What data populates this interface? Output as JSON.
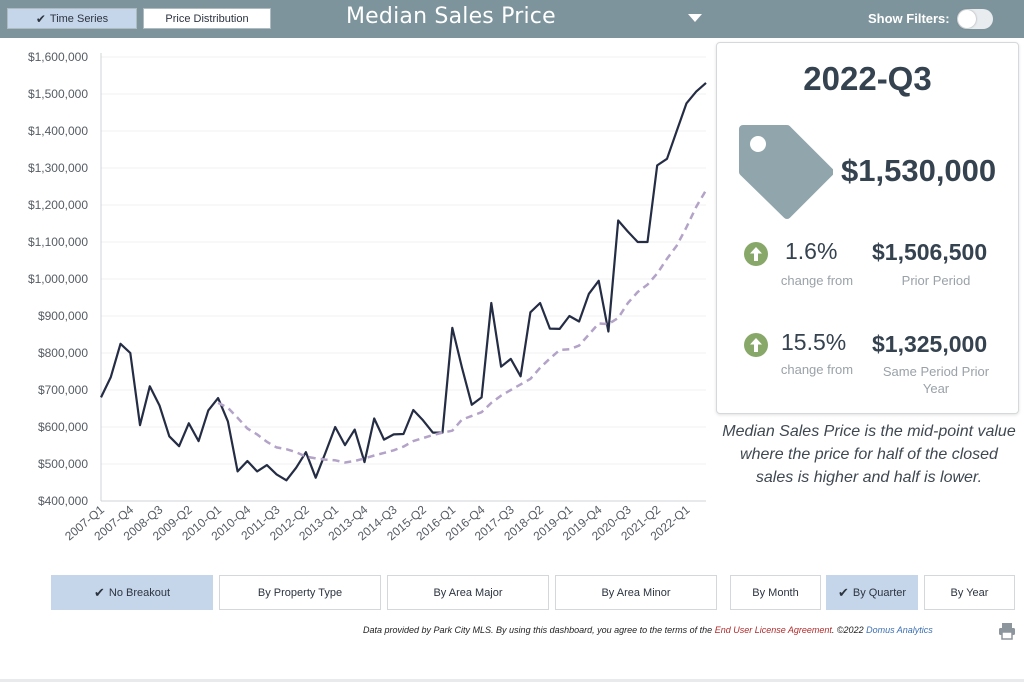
{
  "header": {
    "tabs": [
      {
        "label": "Time Series",
        "active": true
      },
      {
        "label": "Price Distribution",
        "active": false
      }
    ],
    "title": "Median Sales Price",
    "show_filters_label": "Show Filters:",
    "show_filters_on": false
  },
  "chart_data": {
    "type": "line",
    "ylim": [
      400000,
      1600000
    ],
    "y_ticks": [
      "$1,600,000",
      "$1,500,000",
      "$1,400,000",
      "$1,300,000",
      "$1,200,000",
      "$1,100,000",
      "$1,000,000",
      "$900,000",
      "$800,000",
      "$700,000",
      "$600,000",
      "$500,000",
      "$400,000"
    ],
    "x_tick_labels": [
      "2007-Q1",
      "2007-Q4",
      "2008-Q3",
      "2009-Q2",
      "2010-Q1",
      "2010-Q4",
      "2011-Q3",
      "2012-Q2",
      "2013-Q1",
      "2013-Q4",
      "2014-Q3",
      "2015-Q2",
      "2016-Q1",
      "2016-Q4",
      "2017-Q3",
      "2018-Q2",
      "2019-Q1",
      "2019-Q4",
      "2020-Q3",
      "2021-Q2",
      "2022-Q1"
    ],
    "categories": [
      "2007-Q1",
      "2007-Q2",
      "2007-Q3",
      "2007-Q4",
      "2008-Q1",
      "2008-Q2",
      "2008-Q3",
      "2008-Q4",
      "2009-Q1",
      "2009-Q2",
      "2009-Q3",
      "2009-Q4",
      "2010-Q1",
      "2010-Q2",
      "2010-Q3",
      "2010-Q4",
      "2011-Q1",
      "2011-Q2",
      "2011-Q3",
      "2011-Q4",
      "2012-Q1",
      "2012-Q2",
      "2012-Q3",
      "2012-Q4",
      "2013-Q1",
      "2013-Q2",
      "2013-Q3",
      "2013-Q4",
      "2014-Q1",
      "2014-Q2",
      "2014-Q3",
      "2014-Q4",
      "2015-Q1",
      "2015-Q2",
      "2015-Q3",
      "2015-Q4",
      "2016-Q1",
      "2016-Q2",
      "2016-Q3",
      "2016-Q4",
      "2017-Q1",
      "2017-Q2",
      "2017-Q3",
      "2017-Q4",
      "2018-Q1",
      "2018-Q2",
      "2018-Q3",
      "2018-Q4",
      "2019-Q1",
      "2019-Q2",
      "2019-Q3",
      "2019-Q4",
      "2020-Q1",
      "2020-Q2",
      "2020-Q3",
      "2020-Q4",
      "2021-Q1",
      "2021-Q2",
      "2021-Q3",
      "2021-Q4",
      "2022-Q1",
      "2022-Q2",
      "2022-Q3"
    ],
    "series": [
      {
        "values": [
          680000,
          735000,
          825000,
          800000,
          605000,
          710000,
          658000,
          575000,
          548000,
          610000,
          562000,
          645000,
          678000,
          615000,
          480000,
          508000,
          480000,
          497000,
          472000,
          456000,
          490000,
          532000,
          463000,
          530000,
          600000,
          551000,
          593000,
          505000,
          623000,
          566000,
          580000,
          581000,
          646000,
          618000,
          585000,
          585000,
          868000,
          760000,
          660000,
          680000,
          935000,
          763000,
          784000,
          737000,
          910000,
          935000,
          866000,
          865000,
          900000,
          885000,
          960000,
          995000,
          858000,
          1158000,
          1128000,
          1100000,
          1100000,
          1307000,
          1325000,
          1400000,
          1475000,
          1506500,
          1530000
        ],
        "color": "#252d45",
        "style": "solid"
      },
      {
        "values": [
          null,
          null,
          null,
          null,
          null,
          null,
          null,
          null,
          null,
          null,
          null,
          null,
          665000,
          652000,
          625000,
          596000,
          580000,
          560000,
          545000,
          540000,
          532000,
          520000,
          515000,
          512000,
          510000,
          504000,
          508000,
          515000,
          523000,
          530000,
          537000,
          547000,
          562000,
          570000,
          578000,
          585000,
          590000,
          620000,
          630000,
          640000,
          665000,
          685000,
          700000,
          715000,
          730000,
          760000,
          785000,
          808000,
          810000,
          820000,
          850000,
          880000,
          878000,
          895000,
          935000,
          965000,
          985000,
          1015000,
          1055000,
          1090000,
          1140000,
          1195000,
          1240000
        ],
        "color": "#b3a3c8",
        "style": "dashed"
      }
    ]
  },
  "kpi": {
    "period": "2022-Q3",
    "value": "$1,530,000",
    "tag_icon": "price-tag-icon",
    "rows": [
      {
        "pct": "1.6%",
        "pct_label": "change from",
        "value": "$1,506,500",
        "value_label": "Prior Period",
        "direction_icon": "arrow-up-icon"
      },
      {
        "pct": "15.5%",
        "pct_label": "change from",
        "value": "$1,325,000",
        "value_label": "Same Period Prior Year",
        "direction_icon": "arrow-up-icon"
      }
    ]
  },
  "description": "Median Sales Price is the mid-point value where the price for half of the closed sales is higher and half is lower.",
  "breakdown_buttons": [
    {
      "label": "No Breakout",
      "active": true
    },
    {
      "label": "By Property Type",
      "active": false
    },
    {
      "label": "By Area Major",
      "active": false
    },
    {
      "label": "By Area Minor",
      "active": false
    }
  ],
  "period_buttons": [
    {
      "label": "By Month",
      "active": false
    },
    {
      "label": "By Quarter",
      "active": true
    },
    {
      "label": "By Year",
      "active": false
    }
  ],
  "footer": {
    "text_before": "Data provided by Park City MLS.  By using this dashboard, you agree to the terms of the ",
    "license_link": "End User License Agreement",
    "text_middle": ".  ©2022 ",
    "company_link": "Domus Analytics",
    "print_icon": "printer-icon"
  },
  "colors": {
    "header_bg": "#7d949c",
    "active_button": "#c6d6ea",
    "up_arrow": "#88a869",
    "tag": "#91a5ad"
  }
}
